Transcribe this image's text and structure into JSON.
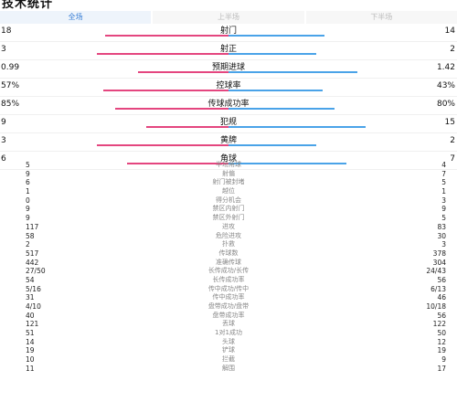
{
  "title": "技术统计",
  "tabs": [
    "全场",
    "上半场",
    "下半场"
  ],
  "colors": {
    "home": "#e4467f",
    "away": "#4aa3e8"
  },
  "major_stats": [
    {
      "label": "射门",
      "left": "18",
      "right": "14",
      "lv": 18,
      "rv": 14
    },
    {
      "label": "射正",
      "left": "3",
      "right": "2",
      "lv": 3,
      "rv": 2
    },
    {
      "label": "预期进球",
      "left": "0.99",
      "right": "1.42",
      "lv": 0.99,
      "rv": 1.42
    },
    {
      "label": "控球率",
      "left": "57%",
      "right": "43%",
      "lv": 57,
      "rv": 43
    },
    {
      "label": "传球成功率",
      "left": "85%",
      "right": "80%",
      "lv": 85,
      "rv": 80
    },
    {
      "label": "犯规",
      "left": "9",
      "right": "15",
      "lv": 9,
      "rv": 15
    },
    {
      "label": "黄牌",
      "left": "3",
      "right": "2",
      "lv": 3,
      "rv": 2
    },
    {
      "label": "角球",
      "left": "6",
      "right": "7",
      "lv": 6,
      "rv": 7
    }
  ],
  "minor_stats": [
    {
      "label": "半场角球",
      "left": "5",
      "right": "4"
    },
    {
      "label": "射偏",
      "left": "9",
      "right": "7"
    },
    {
      "label": "射门被封堵",
      "left": "6",
      "right": "5"
    },
    {
      "label": "越位",
      "left": "1",
      "right": "1"
    },
    {
      "label": "得分机会",
      "left": "0",
      "right": "3"
    },
    {
      "label": "禁区内射门",
      "left": "9",
      "right": "9"
    },
    {
      "label": "禁区外射门",
      "left": "9",
      "right": "5"
    },
    {
      "label": "进攻",
      "left": "117",
      "right": "83"
    },
    {
      "label": "危险进攻",
      "left": "58",
      "right": "30"
    },
    {
      "label": "扑救",
      "left": "2",
      "right": "3"
    },
    {
      "label": "传球数",
      "left": "517",
      "right": "378"
    },
    {
      "label": "准确传球",
      "left": "442",
      "right": "304"
    },
    {
      "label": "长传成功/长传",
      "left": "27/50",
      "right": "24/43"
    },
    {
      "label": "长传成功率",
      "left": "54",
      "right": "56"
    },
    {
      "label": "传中成功/传中",
      "left": "5/16",
      "right": "6/13"
    },
    {
      "label": "传中成功率",
      "left": "31",
      "right": "46"
    },
    {
      "label": "盘带成功/盘带",
      "left": "4/10",
      "right": "10/18"
    },
    {
      "label": "盘带成功率",
      "left": "40",
      "right": "56"
    },
    {
      "label": "丢球",
      "left": "121",
      "right": "122"
    },
    {
      "label": "1对1成功",
      "left": "51",
      "right": "50"
    },
    {
      "label": "头球",
      "left": "14",
      "right": "12"
    },
    {
      "label": "铲球",
      "left": "19",
      "right": "19"
    },
    {
      "label": "拦截",
      "left": "10",
      "right": "9"
    },
    {
      "label": "解围",
      "left": "11",
      "right": "17"
    }
  ]
}
